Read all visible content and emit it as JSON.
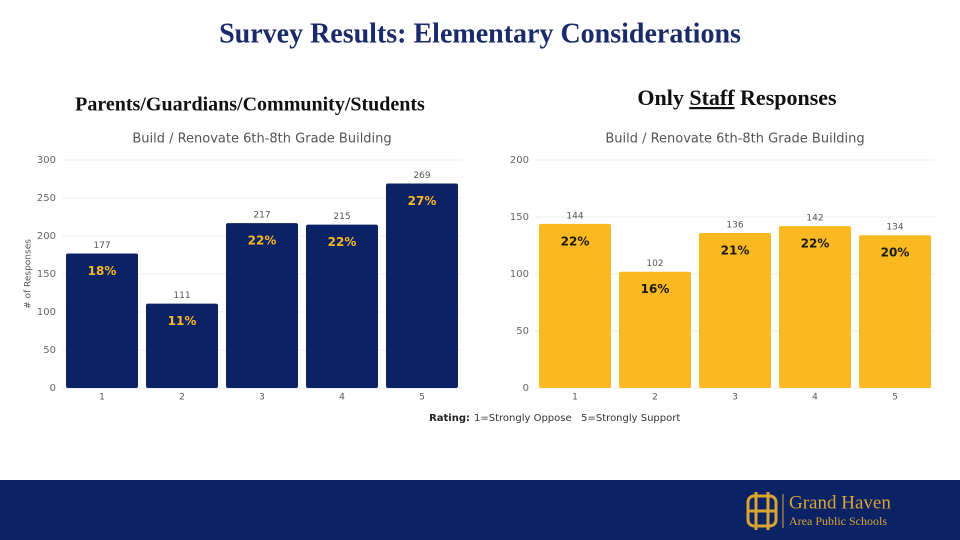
{
  "title": "Survey Results: Elementary Considerations",
  "headings": [
    "Parents/Guardians/Community/Students",
    [
      "Only ",
      "Staff",
      " Responses"
    ]
  ],
  "chart_data": [
    {
      "type": "bar",
      "title": "Build / Renovate 6th-8th Grade Building",
      "ylabel": "# of Responses",
      "categories": [
        "1",
        "2",
        "3",
        "4",
        "5"
      ],
      "values": [
        177,
        111,
        217,
        215,
        269
      ],
      "percent_labels": [
        {
          "value": 18,
          "label": "18%"
        },
        {
          "value": 11,
          "label": "11%"
        },
        {
          "value": 22,
          "label": "22%"
        },
        {
          "value": 22,
          "label": "22%"
        },
        {
          "value": 27,
          "label": "27%"
        }
      ],
      "color": "#0b2265",
      "label_color": "#fbb921",
      "ylim": [
        0,
        300
      ],
      "yticks": [
        0,
        50,
        100,
        150,
        200,
        250,
        300
      ],
      "grid": true
    },
    {
      "type": "bar",
      "title": "Build / Renovate 6th-8th Grade Building",
      "categories": [
        "1",
        "2",
        "3",
        "4",
        "5"
      ],
      "values": [
        144,
        102,
        136,
        142,
        134
      ],
      "percent_labels": [
        {
          "value": 22,
          "label": "22%"
        },
        {
          "value": 16,
          "label": "16%"
        },
        {
          "value": 21,
          "label": "21%"
        },
        {
          "value": 22,
          "label": "22%"
        },
        {
          "value": 20,
          "label": "20%"
        }
      ],
      "color": "#fbb921",
      "label_color": "#1a1a1a",
      "ylim": [
        0,
        200
      ],
      "yticks": [
        0,
        50,
        100,
        150,
        200
      ],
      "grid": true
    }
  ],
  "rating": {
    "label": "Rating:",
    "text": "1=Strongly Oppose   5=Strongly Support"
  },
  "logo": {
    "name": "Grand Haven",
    "sub": "Area Public Schools"
  }
}
